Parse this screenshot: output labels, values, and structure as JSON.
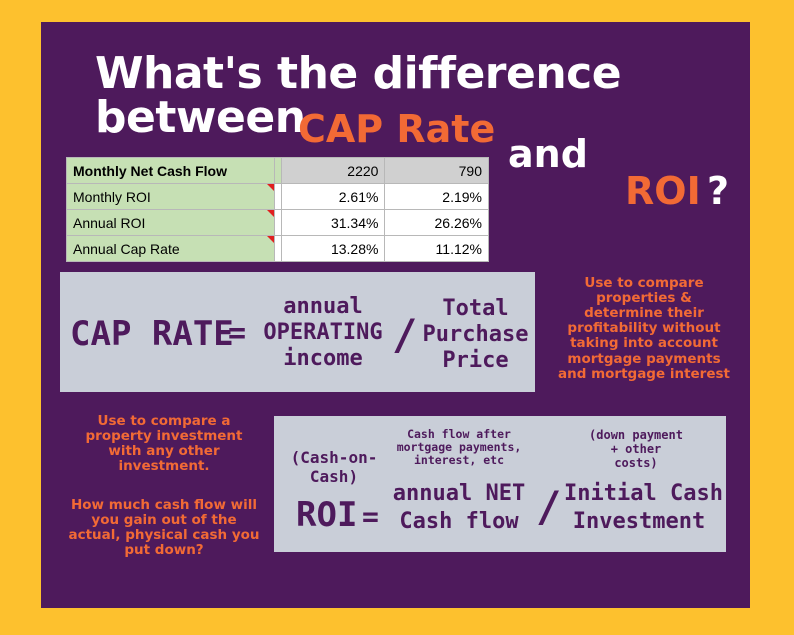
{
  "title": {
    "line1": "What's the difference",
    "line2": "between",
    "cap_rate": "CAP Rate",
    "and": "and",
    "roi": "ROI",
    "question": "?"
  },
  "spreadsheet": {
    "rows": [
      {
        "label": "Monthly Net Cash Flow",
        "v1": "2220",
        "v2": "790"
      },
      {
        "label": "Monthly ROI",
        "v1": "2.61%",
        "v2": "2.19%"
      },
      {
        "label": "Annual ROI",
        "v1": "31.34%",
        "v2": "26.26%"
      },
      {
        "label": "Annual Cap Rate",
        "v1": "13.28%",
        "v2": "11.12%"
      }
    ]
  },
  "cap_formula": {
    "lhs": "CAP RATE",
    "equals": "=",
    "num_line1": "annual",
    "num_line2": "OPERATING",
    "num_line3": "income",
    "slash": "/",
    "den_line1": "Total",
    "den_line2": "Purchase",
    "den_line3": "Price"
  },
  "cap_note": "Use to compare properties & determine their profitability without taking into account mortgage payments and mortgage interest",
  "roi_note_1": "Use to compare a property investment with any other investment.",
  "roi_note_2": "How much cash flow will you gain out of the actual, physical cash you put down?",
  "roi_formula": {
    "pre_label": "(Cash-on-Cash)",
    "lhs": "ROI",
    "equals": "=",
    "num_note": "Cash flow after mortgage payments, interest, etc",
    "num_line1": "annual NET",
    "num_line2": "Cash flow",
    "slash": "/",
    "den_note": "(down payment + other costs)",
    "den_line1": "Initial Cash",
    "den_line2": "Investment"
  },
  "colors": {
    "background": "#FDC12E",
    "panel": "#4E1A5C",
    "accent": "#F26A35",
    "formula_box": "#C9CED8"
  }
}
